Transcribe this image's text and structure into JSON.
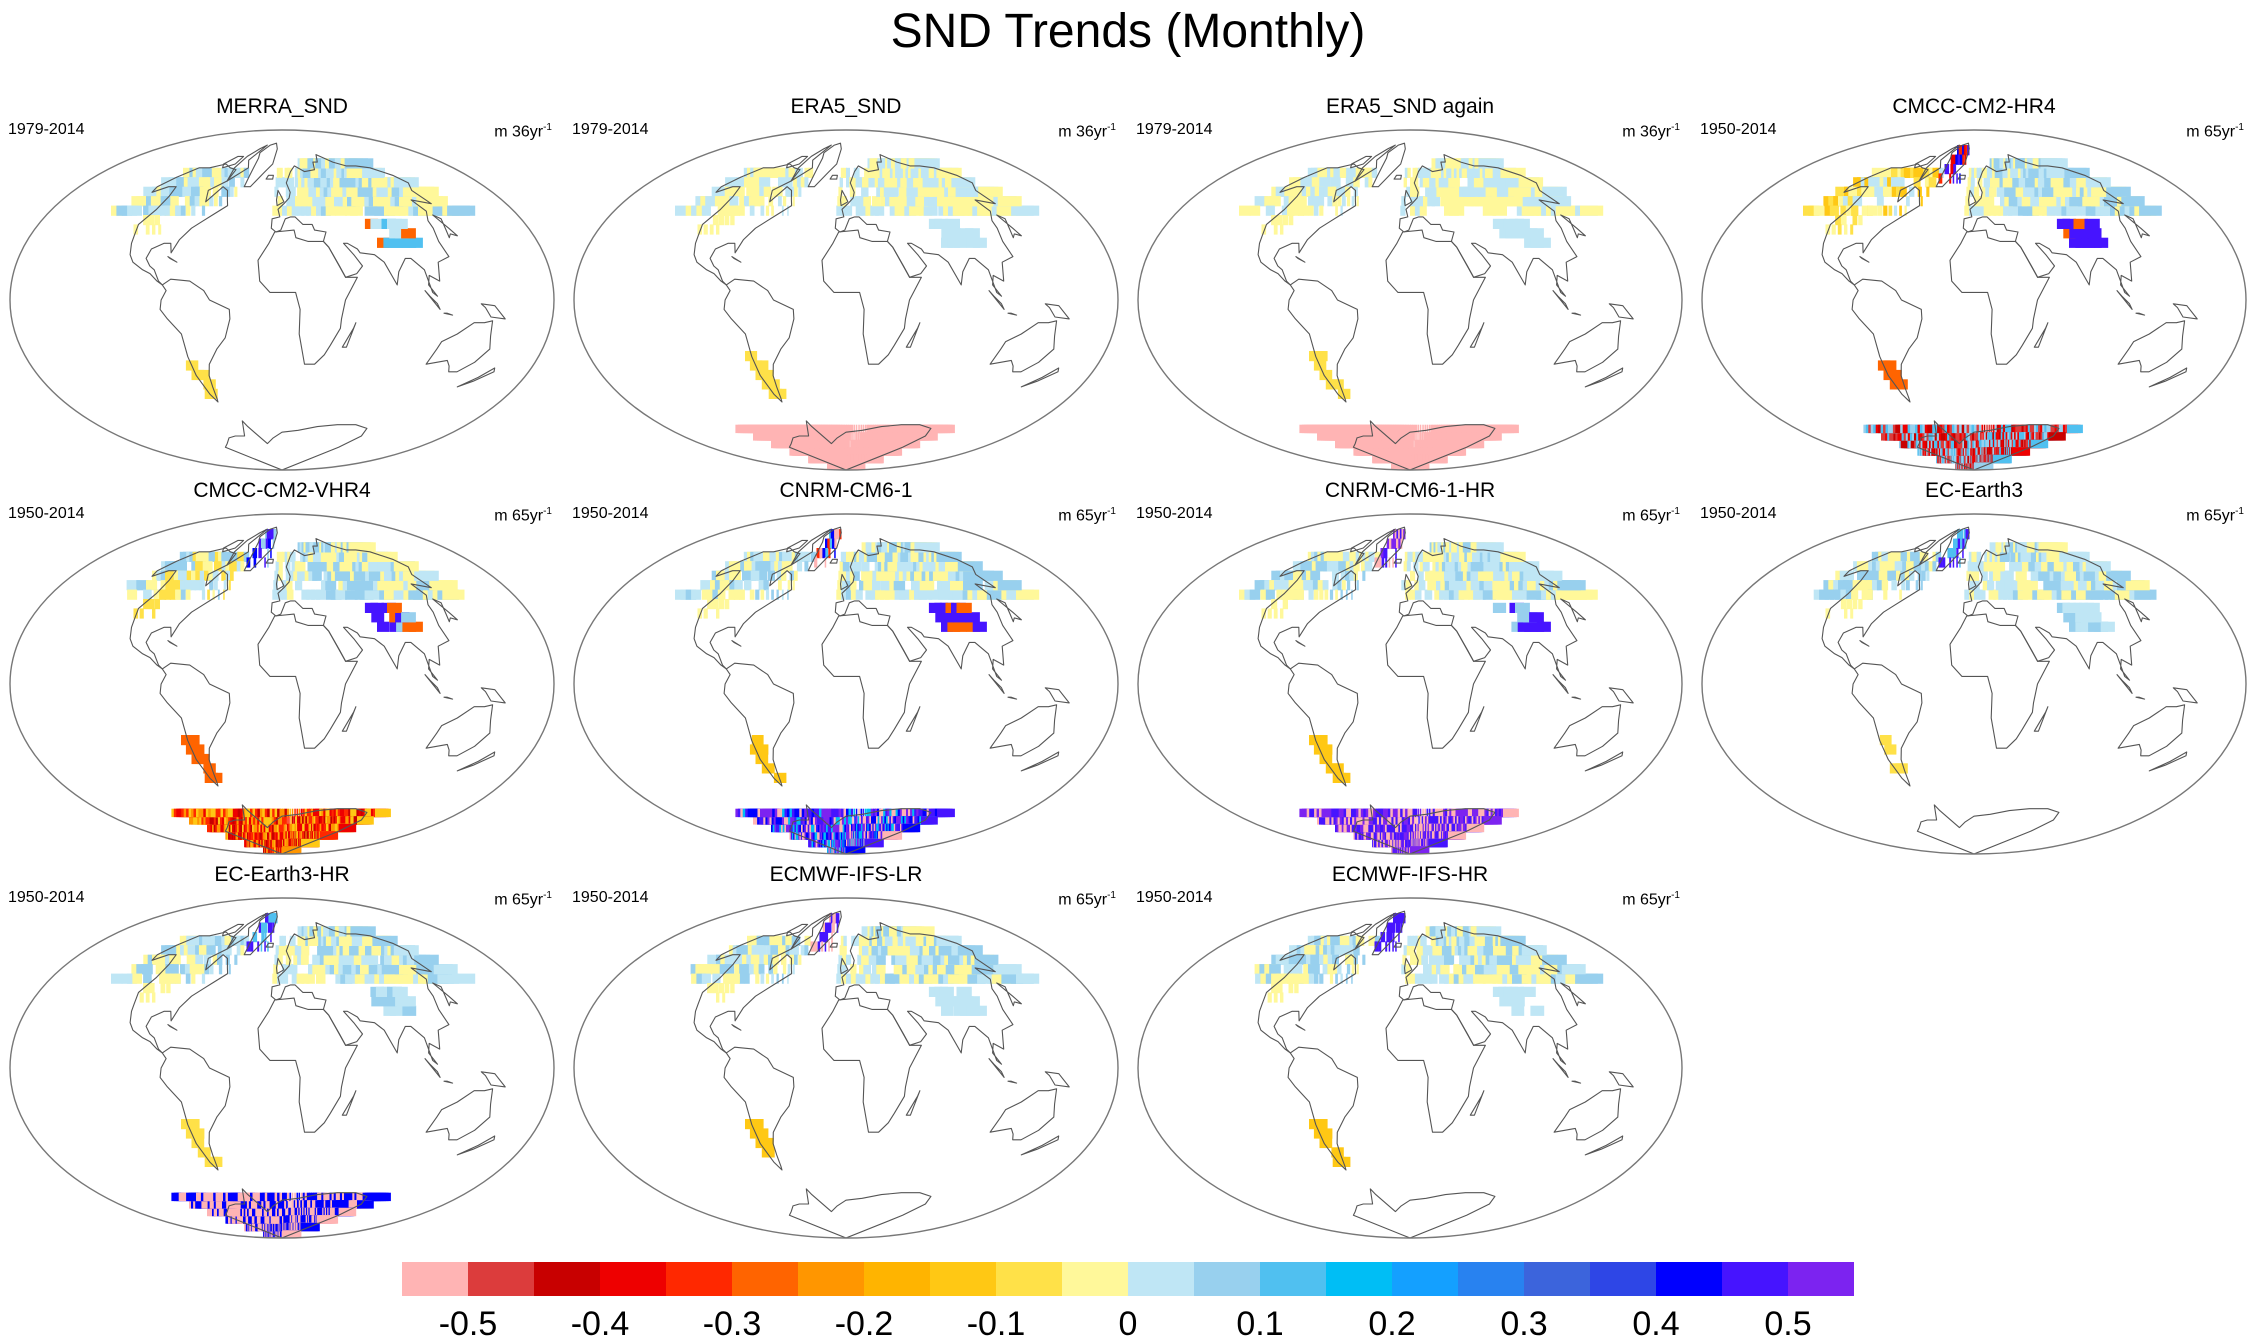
{
  "title": "SND Trends (Monthly)",
  "panels": [
    {
      "name": "MERRA_SND",
      "period": "1979-2014",
      "units": "m 36yr",
      "units_exp": "-1",
      "pattern": "merra"
    },
    {
      "name": "ERA5_SND",
      "period": "1979-2014",
      "units": "m 36yr",
      "units_exp": "-1",
      "pattern": "era5"
    },
    {
      "name": "ERA5_SND again",
      "period": "1979-2014",
      "units": "m 36yr",
      "units_exp": "-1",
      "pattern": "era5"
    },
    {
      "name": "CMCC-CM2-HR4",
      "period": "1950-2014",
      "units": "m 65yr",
      "units_exp": "-1",
      "pattern": "cmcc_hr4"
    },
    {
      "name": "CMCC-CM2-VHR4",
      "period": "1950-2014",
      "units": "m 65yr",
      "units_exp": "-1",
      "pattern": "cmcc_vhr4"
    },
    {
      "name": "CNRM-CM6-1",
      "period": "1950-2014",
      "units": "m 65yr",
      "units_exp": "-1",
      "pattern": "cnrm"
    },
    {
      "name": "CNRM-CM6-1-HR",
      "period": "1950-2014",
      "units": "m 65yr",
      "units_exp": "-1",
      "pattern": "cnrm_hr"
    },
    {
      "name": "EC-Earth3",
      "period": "1950-2014",
      "units": "m 65yr",
      "units_exp": "-1",
      "pattern": "ecearth"
    },
    {
      "name": "EC-Earth3-HR",
      "period": "1950-2014",
      "units": "m 65yr",
      "units_exp": "-1",
      "pattern": "ecearth_hr"
    },
    {
      "name": "ECMWF-IFS-LR",
      "period": "1950-2014",
      "units": "m 65yr",
      "units_exp": "-1",
      "pattern": "ifs_lr"
    },
    {
      "name": "ECMWF-IFS-HR",
      "period": "1950-2014",
      "units": "m 65yr",
      "units_exp": "-1",
      "pattern": "ifs_hr"
    }
  ],
  "colorbar": {
    "colors": [
      "#ffb4b4",
      "#dc3c3c",
      "#c80000",
      "#ee0000",
      "#ff2800",
      "#ff6400",
      "#ff9600",
      "#ffb400",
      "#ffc814",
      "#ffe148",
      "#fff89a",
      "#bfe6f5",
      "#98d0ee",
      "#50c0f0",
      "#00bef5",
      "#14a0ff",
      "#2882f0",
      "#3c64dc",
      "#2e46e6",
      "#0000ff",
      "#4614ff",
      "#7c23f0"
    ],
    "labels": [
      "-0.5",
      "-0.4",
      "-0.3",
      "-0.2",
      "-0.1",
      "0",
      "0.1",
      "0.2",
      "0.3",
      "0.4",
      "0.5"
    ]
  }
}
